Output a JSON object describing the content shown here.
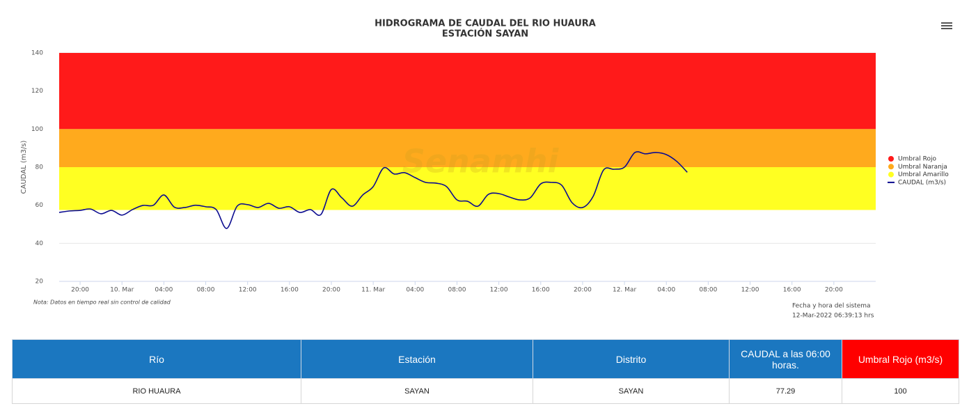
{
  "chart_data": {
    "type": "line",
    "title": "HIDROGRAMA DE CAUDAL DEL RIO HUAURA",
    "subtitle": "ESTACIÓN SAYAN",
    "ylabel": "CAUDAL (m3/s)",
    "watermark": "Senamhi",
    "ylim": [
      20,
      140
    ],
    "yticks": [
      20,
      40,
      60,
      80,
      100,
      120,
      140
    ],
    "grid": true,
    "xlim": [
      -6,
      72
    ],
    "xticks": [
      {
        "value": -4,
        "label": "20:00"
      },
      {
        "value": 0,
        "label": "10. Mar"
      },
      {
        "value": 4,
        "label": "04:00"
      },
      {
        "value": 8,
        "label": "08:00"
      },
      {
        "value": 12,
        "label": "12:00"
      },
      {
        "value": 16,
        "label": "16:00"
      },
      {
        "value": 20,
        "label": "20:00"
      },
      {
        "value": 24,
        "label": "11. Mar"
      },
      {
        "value": 28,
        "label": "04:00"
      },
      {
        "value": 32,
        "label": "08:00"
      },
      {
        "value": 36,
        "label": "12:00"
      },
      {
        "value": 40,
        "label": "16:00"
      },
      {
        "value": 44,
        "label": "20:00"
      },
      {
        "value": 48,
        "label": "12. Mar"
      },
      {
        "value": 52,
        "label": "04:00"
      },
      {
        "value": 56,
        "label": "08:00"
      },
      {
        "value": 60,
        "label": "12:00"
      },
      {
        "value": 64,
        "label": "16:00"
      },
      {
        "value": 68,
        "label": "20:00"
      }
    ],
    "bands": [
      {
        "name": "Umbral Rojo",
        "color": "#ff1a1a",
        "from": 100,
        "to": 140
      },
      {
        "name": "Umbral Naranja",
        "color": "#ffaa1d",
        "from": 80,
        "to": 100
      },
      {
        "name": "Umbral Amarillo",
        "color": "#ffff22",
        "from": 57.5,
        "to": 80
      }
    ],
    "x": [
      -6,
      -5,
      -4,
      -3,
      -2,
      -1,
      0,
      1,
      2,
      3,
      4,
      5,
      6,
      7,
      8,
      9,
      10,
      11,
      12,
      13,
      14,
      15,
      16,
      17,
      18,
      19,
      20,
      21,
      22,
      23,
      24,
      25,
      26,
      27,
      28,
      29,
      30,
      31,
      32,
      33,
      34,
      35,
      36,
      37,
      38,
      39,
      40,
      41,
      42,
      43,
      44,
      45,
      46,
      47,
      48,
      49,
      50,
      51,
      52,
      53,
      54
    ],
    "series": [
      {
        "name": "CAUDAL (m3/s)",
        "color": "#0b0b8f",
        "values": [
          56.2,
          57,
          57.3,
          58,
          55.5,
          57.3,
          54.8,
          57.7,
          59.9,
          60,
          65.4,
          59,
          58.8,
          60,
          59.2,
          57.7,
          47.8,
          59.5,
          60.3,
          58.8,
          61,
          58.4,
          59.2,
          56.2,
          57.7,
          55.1,
          68.3,
          63.9,
          59.5,
          65.4,
          69.8,
          79.6,
          76.4,
          77.1,
          74.5,
          72,
          71.6,
          69.8,
          62.8,
          62.1,
          59.5,
          65.7,
          66.1,
          64.3,
          62.8,
          63.9,
          71.2,
          72,
          70.5,
          61.3,
          58.8,
          64.6,
          78.5,
          78.9,
          80,
          87.7,
          87,
          87.7,
          86.6,
          83,
          77.3
        ]
      }
    ]
  },
  "note": "Nota: Datos en tiempo real sin control de calidad",
  "system_time_label": "Fecha y hora del sistema",
  "system_time": "12-Mar-2022 06:39:13 hrs",
  "table": {
    "headers": [
      "Río",
      "Estación",
      "Distrito",
      "CAUDAL a las 06:00 horas.",
      "Umbral Rojo (m3/s)"
    ],
    "rows": [
      [
        "RIO HUAURA",
        "SAYAN",
        "SAYAN",
        77.29,
        100
      ]
    ]
  }
}
